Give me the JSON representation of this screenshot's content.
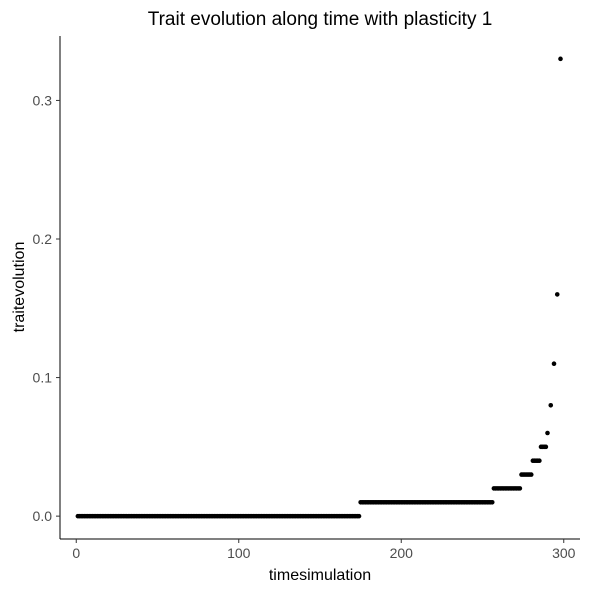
{
  "chart_data": {
    "type": "scatter",
    "title": "Trait evolution along time with plasticity 1",
    "xlabel": "timesimulation",
    "ylabel": "traitevolution",
    "xlim": [
      -10,
      310
    ],
    "ylim": [
      -0.0165,
      0.3465
    ],
    "xticks": [
      0,
      100,
      200,
      300
    ],
    "xtick_labels": [
      "0",
      "100",
      "200",
      "300"
    ],
    "yticks": [
      0.0,
      0.1,
      0.2,
      0.3
    ],
    "ytick_labels": [
      "0.0",
      "0.1",
      "0.2",
      "0.3"
    ],
    "grid": false,
    "legend": "none",
    "point_color": "#000000",
    "segments": [
      {
        "x_from": 1,
        "x_to": 174,
        "y": 0.0
      },
      {
        "x_from": 175,
        "x_to": 256,
        "y": 0.01
      },
      {
        "x_from": 257,
        "x_to": 273,
        "y": 0.02
      },
      {
        "x_from": 274,
        "x_to": 280,
        "y": 0.03
      },
      {
        "x_from": 281,
        "x_to": 285,
        "y": 0.04
      },
      {
        "x_from": 286,
        "x_to": 289,
        "y": 0.05
      }
    ],
    "points": [
      {
        "x": 290,
        "y": 0.06
      },
      {
        "x": 292,
        "y": 0.08
      },
      {
        "x": 294,
        "y": 0.11
      },
      {
        "x": 296,
        "y": 0.16
      },
      {
        "x": 298,
        "y": 0.33
      }
    ]
  }
}
